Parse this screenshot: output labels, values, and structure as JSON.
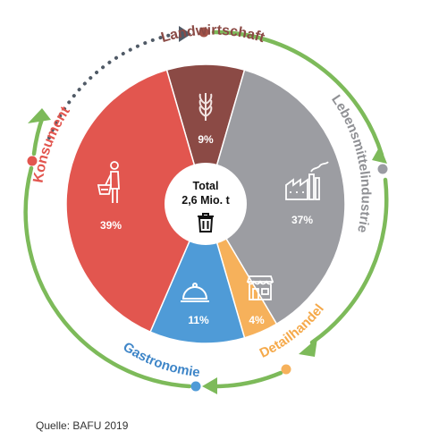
{
  "chart_data": {
    "type": "pie",
    "title": "",
    "center_label": {
      "line1": "Total",
      "line2": "2,6 Mio. t",
      "icon": "trash-bin-icon"
    },
    "slices": [
      {
        "name": "Landwirtschaft",
        "value": 9,
        "label": "9%",
        "color": "#8b4a45",
        "icon": "wheat-icon"
      },
      {
        "name": "Lebensmittelindustrie",
        "value": 37,
        "label": "37%",
        "color": "#9c9da2",
        "icon": "factory-icon"
      },
      {
        "name": "Detailhandel",
        "value": 4,
        "label": "4%",
        "color": "#f6b15b",
        "icon": "store-icon"
      },
      {
        "name": "Gastronomie",
        "value": 11,
        "label": "11%",
        "color": "#4f9bd7",
        "icon": "cloche-icon"
      },
      {
        "name": "Konsument",
        "value": 39,
        "label": "39%",
        "color": "#e2564f",
        "icon": "shopper-icon"
      }
    ],
    "category_label_colors": {
      "Landwirtschaft": "#8b4a45",
      "Lebensmittelindustrie": "#8f9094",
      "Detailhandel": "#f5a94a",
      "Gastronomie": "#3f86c8",
      "Konsument": "#e2564f"
    },
    "cycle_arrow_color": "#7dba5a",
    "dotted_arrow_color": "#505a66"
  },
  "source": "Quelle: BAFU 2019"
}
